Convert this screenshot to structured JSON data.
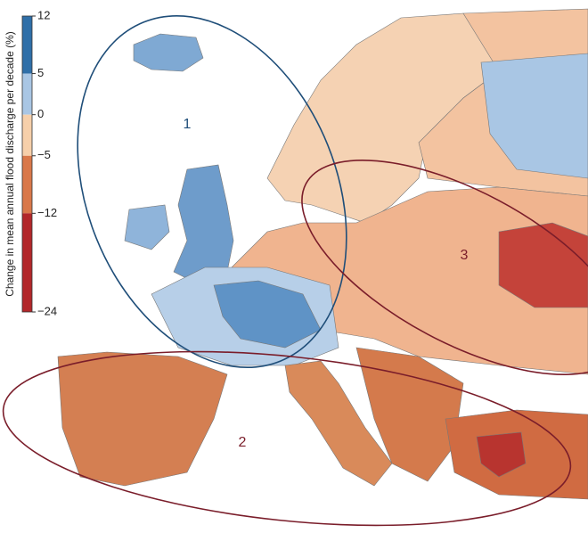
{
  "legend": {
    "title": "Change in mean annual flood discharge per decade (%)",
    "range": [
      -24,
      12
    ],
    "ticks": [
      12,
      5,
      0,
      {
        "value": -5,
        "label": "−5"
      },
      {
        "value": -12,
        "label": "−12"
      },
      {
        "value": -24,
        "label": "−24"
      }
    ],
    "colors": [
      "#2f6fa8",
      "#a9c6e4",
      "#f6cfaa",
      "#d9784a",
      "#b2272a"
    ]
  },
  "regions": [
    {
      "label": "1"
    },
    {
      "label": "2"
    },
    {
      "label": "3"
    }
  ]
}
